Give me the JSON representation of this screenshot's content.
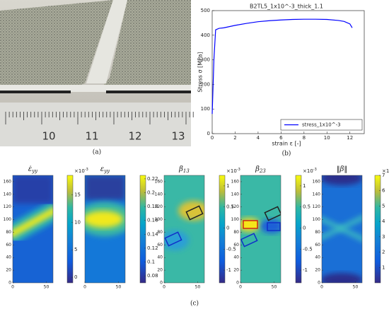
{
  "photo": {
    "ruler_labels": [
      "10",
      "11",
      "12",
      "13"
    ],
    "caption": "(a)"
  },
  "chart_data": {
    "type": "line",
    "title": "B2TL5_1x10^-3_thick_1.1",
    "xlabel": "strain ε [-]",
    "ylabel": "Stress σ [MPa]",
    "x": [
      0,
      0.15,
      0.3,
      0.6,
      1,
      2,
      3,
      4,
      5,
      6,
      7,
      8,
      9,
      10,
      11,
      11.5,
      12,
      12.2
    ],
    "series": [
      {
        "name": "stress_1x10^-3",
        "color": "#0000ff",
        "values": [
          80,
          300,
          422,
          428,
          430,
          440,
          448,
          455,
          459,
          462,
          464,
          465,
          465,
          464,
          460,
          456,
          446,
          430
        ]
      }
    ],
    "xlim": [
      0,
      13.25
    ],
    "ylim": [
      0,
      500
    ],
    "xticks": [
      0,
      2,
      4,
      6,
      8,
      10,
      12
    ],
    "yticks": [
      0,
      100,
      200,
      300,
      400,
      500
    ],
    "legend": "lower right",
    "caption": "(b)"
  },
  "heatmaps": [
    {
      "title": {
        "symbol": "ε̇",
        "sub": "yy"
      },
      "xticks": [
        0,
        50
      ],
      "yticks": [
        0,
        20,
        40,
        60,
        80,
        100,
        120,
        140,
        160
      ],
      "xlim": [
        0,
        60
      ],
      "ylim": [
        0,
        170
      ],
      "clim": [
        -1,
        18.5
      ],
      "cticks": [
        0,
        5,
        10,
        15
      ],
      "exponent": {
        "base": "×10",
        "exp": "-3"
      }
    },
    {
      "title": {
        "symbol": "ε",
        "sub": "yy"
      },
      "xticks": [
        0,
        50
      ],
      "xlim": [
        0,
        60
      ],
      "ylim": [
        0,
        170
      ],
      "clim": [
        0.07,
        0.225
      ],
      "cticks": [
        0.08,
        0.1,
        0.12,
        0.14,
        0.16,
        0.18,
        0.2,
        0.22
      ]
    },
    {
      "title": {
        "symbol": "β",
        "sub": "13"
      },
      "xticks": [
        0,
        50
      ],
      "yticks": [
        0,
        20,
        40,
        60,
        80,
        100,
        120,
        140,
        160
      ],
      "xlim": [
        0,
        60
      ],
      "ylim": [
        0,
        170
      ],
      "clim": [
        -1.3,
        1.25
      ],
      "cticks": [
        -1,
        -0.5,
        0,
        0.5,
        1
      ],
      "exponent": {
        "base": "×10",
        "exp": "-3"
      }
    },
    {
      "title": {
        "symbol": "β",
        "sub": "23"
      },
      "xticks": [
        0,
        50
      ],
      "yticks": [
        0,
        20,
        40,
        60,
        80,
        100,
        120,
        140,
        160
      ],
      "xlim": [
        0,
        60
      ],
      "ylim": [
        0,
        170
      ],
      "clim": [
        -1.3,
        1.25
      ],
      "cticks": [
        -1,
        -0.5,
        0,
        0.5,
        1
      ],
      "exponent": {
        "base": "×10",
        "exp": "-3"
      }
    },
    {
      "title": {
        "symbol": "‖β‖"
      },
      "xticks": [
        0,
        50
      ],
      "yticks": [
        0,
        20,
        40,
        60,
        80,
        100,
        120,
        140,
        160
      ],
      "xlim": [
        0,
        60
      ],
      "ylim": [
        0,
        170
      ],
      "clim": [
        0,
        7
      ],
      "cticks": [
        1,
        2,
        3,
        4,
        5,
        6,
        7
      ],
      "exponent": {
        "base": "×10",
        "exp": "-5"
      }
    }
  ],
  "caption_c": "(c)"
}
